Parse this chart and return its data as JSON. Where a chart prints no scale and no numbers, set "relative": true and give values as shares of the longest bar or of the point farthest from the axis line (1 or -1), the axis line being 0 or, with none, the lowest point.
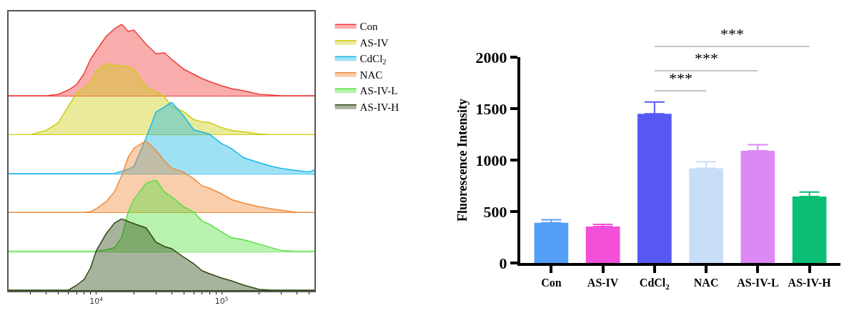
{
  "chart_data": [
    {
      "type": "area",
      "relative": true,
      "log": "x",
      "legend": "right",
      "tick_labels": false,
      "xlim": [
        2000,
        550000
      ],
      "x": [
        2000,
        3000,
        4000,
        5000,
        6000,
        7000,
        8000,
        9000,
        10000,
        12000,
        14000,
        16000,
        18000,
        20000,
        25000,
        30000,
        35000,
        40000,
        50000,
        60000,
        70000,
        80000,
        100000,
        120000,
        150000,
        200000,
        250000,
        300000,
        400000,
        500000,
        550000
      ],
      "series": [
        {
          "name": "Con",
          "color": "#f03a3a",
          "values": [
            0,
            0,
            0,
            0.02,
            0.08,
            0.16,
            0.31,
            0.51,
            0.63,
            0.83,
            0.94,
            1.0,
            0.9,
            0.92,
            0.72,
            0.59,
            0.6,
            0.51,
            0.37,
            0.3,
            0.24,
            0.2,
            0.14,
            0.1,
            0.07,
            0.02,
            0.01,
            0,
            0,
            0,
            0
          ]
        }
      ]
    },
    {
      "type": "area",
      "relative": true,
      "log": "x",
      "legend": "right",
      "tick_labels": false,
      "xlim": [
        2000,
        550000
      ],
      "x": [
        2000,
        3000,
        4000,
        5000,
        6000,
        7000,
        8000,
        9000,
        10000,
        12000,
        14000,
        16000,
        18000,
        20000,
        25000,
        30000,
        35000,
        40000,
        50000,
        60000,
        70000,
        80000,
        100000,
        120000,
        150000,
        200000,
        250000,
        300000,
        400000,
        500000,
        550000
      ],
      "series": [
        {
          "name": "AS-IV",
          "color": "#cccc10",
          "values": [
            0,
            0,
            0.06,
            0.17,
            0.4,
            0.58,
            0.65,
            0.73,
            0.88,
            1.0,
            0.97,
            0.96,
            0.95,
            0.91,
            0.66,
            0.6,
            0.53,
            0.4,
            0.32,
            0.21,
            0.18,
            0.17,
            0.1,
            0.06,
            0.04,
            0.01,
            0,
            0,
            0,
            0,
            0
          ]
        }
      ]
    },
    {
      "type": "area",
      "relative": true,
      "log": "x",
      "legend": "right",
      "tick_labels": false,
      "xlim": [
        2000,
        550000
      ],
      "x": [
        2000,
        3000,
        4000,
        5000,
        6000,
        7000,
        8000,
        9000,
        10000,
        12000,
        14000,
        16000,
        18000,
        20000,
        25000,
        30000,
        35000,
        40000,
        50000,
        60000,
        70000,
        80000,
        100000,
        120000,
        150000,
        200000,
        250000,
        300000,
        400000,
        500000,
        550000
      ],
      "series": [
        {
          "name": "CdCl$_{2}$",
          "color": "#19b8e8",
          "values": [
            0,
            0,
            0,
            0,
            0,
            0,
            0,
            0,
            0,
            0,
            0,
            0.03,
            0.06,
            0.1,
            0.5,
            0.86,
            0.93,
            1.0,
            0.8,
            0.61,
            0.58,
            0.55,
            0.42,
            0.35,
            0.22,
            0.15,
            0.1,
            0.07,
            0.04,
            0.02,
            0.05
          ]
        }
      ]
    },
    {
      "type": "area",
      "relative": true,
      "log": "x",
      "legend": "right",
      "tick_labels": false,
      "xlim": [
        2000,
        550000
      ],
      "x": [
        2000,
        3000,
        4000,
        5000,
        6000,
        7000,
        8000,
        9000,
        10000,
        12000,
        14000,
        16000,
        18000,
        20000,
        25000,
        30000,
        35000,
        40000,
        50000,
        60000,
        70000,
        80000,
        100000,
        120000,
        150000,
        200000,
        250000,
        300000,
        400000,
        500000,
        550000
      ],
      "series": [
        {
          "name": "NAC",
          "color": "#f08a3a",
          "values": [
            0,
            0,
            0,
            0,
            0,
            0,
            0,
            0.01,
            0.05,
            0.15,
            0.29,
            0.52,
            0.77,
            0.9,
            1.0,
            0.87,
            0.72,
            0.62,
            0.56,
            0.47,
            0.37,
            0.34,
            0.26,
            0.18,
            0.13,
            0.08,
            0.05,
            0.03,
            0,
            0,
            0
          ]
        }
      ]
    },
    {
      "type": "area",
      "relative": true,
      "log": "x",
      "legend": "right",
      "tick_labels": false,
      "xlim": [
        2000,
        550000
      ],
      "x": [
        2000,
        3000,
        4000,
        5000,
        6000,
        7000,
        8000,
        9000,
        10000,
        12000,
        14000,
        16000,
        18000,
        20000,
        25000,
        30000,
        35000,
        40000,
        50000,
        60000,
        70000,
        80000,
        100000,
        120000,
        150000,
        200000,
        250000,
        300000,
        400000,
        500000,
        550000
      ],
      "series": [
        {
          "name": "AS-IV-L",
          "color": "#55e040",
          "values": [
            0,
            0,
            0,
            0,
            0,
            0,
            0,
            0,
            0,
            0.02,
            0.05,
            0.2,
            0.55,
            0.73,
            0.95,
            1.0,
            0.83,
            0.76,
            0.62,
            0.55,
            0.42,
            0.38,
            0.27,
            0.19,
            0.16,
            0.1,
            0.05,
            0.01,
            0,
            0,
            0
          ]
        }
      ]
    },
    {
      "type": "area",
      "relative": true,
      "log": "x",
      "legend": "right",
      "tick_labels": "x",
      "xlim": [
        2000,
        550000
      ],
      "x": [
        2000,
        3000,
        4000,
        5000,
        6000,
        7000,
        8000,
        9000,
        10000,
        12000,
        14000,
        16000,
        18000,
        20000,
        25000,
        30000,
        35000,
        40000,
        50000,
        60000,
        70000,
        80000,
        100000,
        120000,
        150000,
        200000,
        250000,
        300000,
        400000,
        500000,
        550000
      ],
      "xticks": [
        {
          "value": 3000,
          "label": null
        },
        {
          "value": 4000,
          "label": null
        },
        {
          "value": 5000,
          "label": null
        },
        {
          "value": 6000,
          "label": null
        },
        {
          "value": 7000,
          "label": null
        },
        {
          "value": 8000,
          "label": null
        },
        {
          "value": 9000,
          "label": null
        },
        {
          "value": 10000,
          "label": "10$^{4}$"
        },
        {
          "value": 20000,
          "label": null
        },
        {
          "value": 30000,
          "label": null
        },
        {
          "value": 40000,
          "label": null
        },
        {
          "value": 50000,
          "label": null
        },
        {
          "value": 60000,
          "label": null
        },
        {
          "value": 70000,
          "label": null
        },
        {
          "value": 80000,
          "label": null
        },
        {
          "value": 90000,
          "label": null
        },
        {
          "value": 100000,
          "label": "10$^{5}$"
        },
        {
          "value": 200000,
          "label": null
        },
        {
          "value": 300000,
          "label": null
        },
        {
          "value": 400000,
          "label": null
        },
        {
          "value": 500000,
          "label": null
        }
      ],
      "series": [
        {
          "name": "AS-IV-H",
          "color": "#2e4a14",
          "values": [
            0,
            0,
            0,
            0,
            0,
            0.07,
            0.15,
            0.31,
            0.55,
            0.79,
            0.94,
            1.0,
            0.96,
            0.93,
            0.87,
            0.67,
            0.61,
            0.58,
            0.46,
            0.37,
            0.27,
            0.23,
            0.17,
            0.13,
            0.07,
            0.01,
            0,
            0,
            0,
            0,
            0
          ]
        }
      ]
    },
    {
      "type": "bar",
      "ylabel": "Fluorescence Intensity",
      "categories": [
        "Con",
        "AS-IV",
        "CdCl$_{2}$",
        "NAC",
        "AS-IV-L",
        "AS-IV-H"
      ],
      "values": [
        390,
        355,
        1450,
        920,
        1090,
        645
      ],
      "errors": [
        [
          390,
          420
        ],
        [
          355,
          375
        ],
        [
          1450,
          1565
        ],
        [
          920,
          985
        ],
        [
          1090,
          1150
        ],
        [
          645,
          690
        ]
      ],
      "colors": [
        "#559ff9",
        "#f44fd8",
        "#5858f5",
        "#c8ddf7",
        "#dd88f5",
        "#0abf75"
      ],
      "ylim": [
        0,
        2000
      ],
      "yticks": [
        0,
        500,
        1000,
        1500,
        2000
      ],
      "annotations": [
        "***",
        "***",
        "***"
      ]
    }
  ]
}
